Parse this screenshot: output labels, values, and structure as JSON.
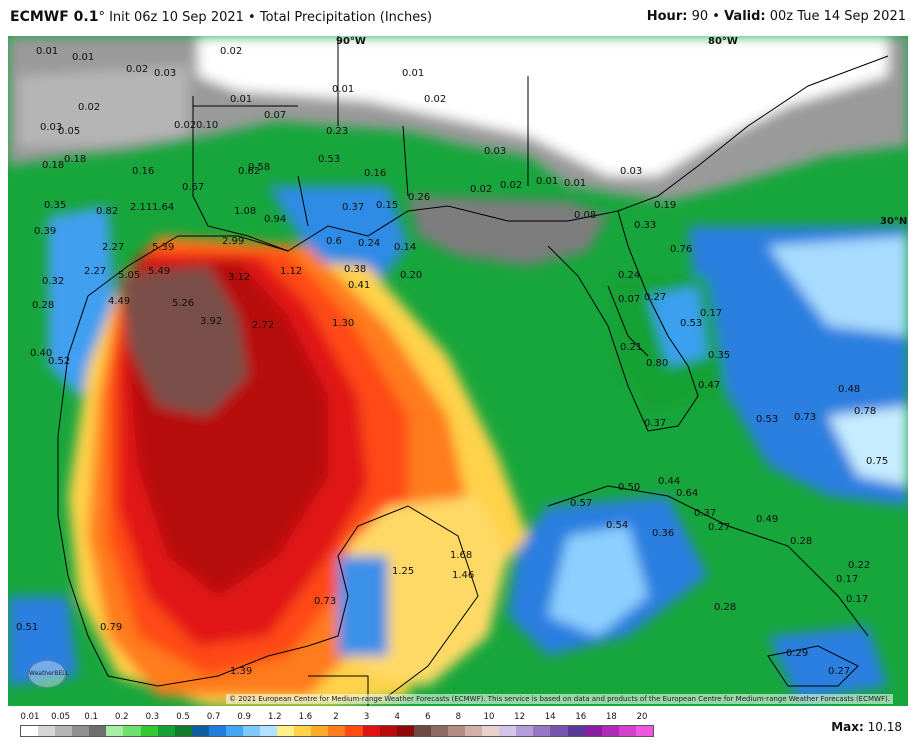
{
  "header": {
    "model": "ECMWF 0.1",
    "degree": "°",
    "init": "Init 06z 10 Sep 2021",
    "separator": "•",
    "product": "Total Precipitation (Inches)",
    "hour_label": "Hour:",
    "hour": "90",
    "valid_label": "Valid:",
    "valid": "00z Tue 14 Sep 2021"
  },
  "map": {
    "longitude_labels": [
      "90°W",
      "80°W"
    ],
    "latitude_labels": [
      "30°N"
    ],
    "value_labels": [
      "0.01",
      "0.01",
      "0.02",
      "0.03",
      "0.02",
      "0.01",
      "0.01",
      "0.02",
      "0.01",
      "0.02",
      "0.05",
      "0.03",
      "0.02",
      "0.10",
      "0.07",
      "0.18",
      "0.18",
      "0.16",
      "0.58",
      "0.23",
      "0.53",
      "0.16",
      "0.67",
      "0.62",
      "0.82",
      "2.11",
      "1.64",
      "1.08",
      "0.94",
      "0.37",
      "0.15",
      "0.26",
      "0.35",
      "0.39",
      "2.27",
      "5.39",
      "2.99",
      "0.6",
      "0.24",
      "0.14",
      "0.32",
      "2.27",
      "5.05",
      "5.49",
      "3.12",
      "1.12",
      "0.38",
      "0.41",
      "0.20",
      "0.28",
      "4.49",
      "5.26",
      "3.92",
      "2.72",
      "1.30",
      "0.40",
      "0.52",
      "0.33",
      "0.76",
      "0.24",
      "0.27",
      "0.07",
      "0.53",
      "0.17",
      "0.21",
      "0.35",
      "0.80",
      "0.47",
      "0.48",
      "0.73",
      "0.78",
      "0.75",
      "0.37",
      "0.53",
      "0.50",
      "0.44",
      "0.64",
      "0.57",
      "0.54",
      "0.37",
      "0.36",
      "0.27",
      "0.49",
      "0.28",
      "1.68",
      "1.25",
      "1.46",
      "0.22",
      "0.17",
      "0.73",
      "0.28",
      "0.51",
      "0.79",
      "1.39",
      "0.29",
      "0.27",
      "0.03",
      "0.02",
      "0.02",
      "0.01",
      "0.01",
      "0.03",
      "0.08",
      "0.19",
      "0.17"
    ],
    "copyright": "© 2021 European Centre for Medium-range Weather Forecasts (ECMWF). This service is based on data and products of the European Centre for Medium-range Weather Forecasts (ECMWF).",
    "logo_text": "WeatherBELL"
  },
  "legend": {
    "ticks": [
      "0.01",
      "0.05",
      "0.1",
      "0.2",
      "0.3",
      "0.5",
      "0.7",
      "0.9",
      "1.2",
      "1.6",
      "2",
      "3",
      "4",
      "6",
      "8",
      "10",
      "12",
      "14",
      "16",
      "18",
      "20"
    ],
    "colors": [
      "#ffffff",
      "#d6d6d6",
      "#b4b4b4",
      "#8f8f8f",
      "#6e6e6e",
      "#a6f0a6",
      "#6ee06e",
      "#34c834",
      "#15a135",
      "#117a2b",
      "#0e5e9e",
      "#1e7ee0",
      "#45a6f5",
      "#7fc8fa",
      "#b0e3ff",
      "#fff08a",
      "#ffd24a",
      "#ffab2a",
      "#ff7b1c",
      "#ff4a14",
      "#e11212",
      "#b80b0b",
      "#8f0808",
      "#6b4a44",
      "#8e6a63",
      "#b38d84",
      "#d2b0a7",
      "#e8d2cb",
      "#d4c4e8",
      "#b49ed8",
      "#9478c4",
      "#7656b0",
      "#5a3a99",
      "#8a1ea3",
      "#b02ab8",
      "#d43fcc",
      "#f056e0"
    ],
    "max_label": "Max:",
    "max_value": "10.18"
  }
}
